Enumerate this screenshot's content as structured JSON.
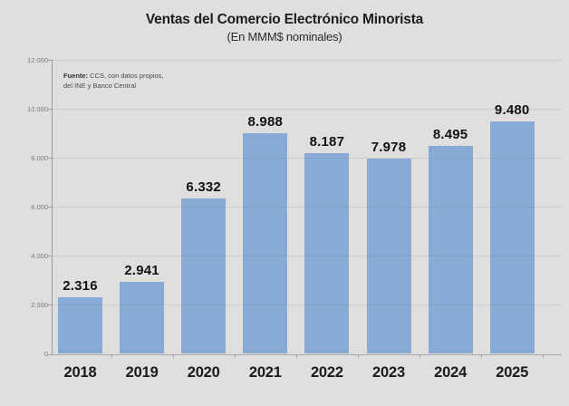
{
  "page": {
    "background_color": "#e0dfdd"
  },
  "header": {
    "title": "Ventas del Comercio Electrónico Minorista",
    "subtitle": "(En MMM$ nominales)"
  },
  "source_note": {
    "prefix": "Fuente:",
    "line1_rest": " CCS, con datos propios,",
    "line2": "del INE y Banco Central"
  },
  "chart_data": {
    "type": "bar",
    "title": "Ventas del Comercio Electrónico Minorista",
    "subtitle": "(En MMM$ nominales)",
    "unit": "MMM$ nominales",
    "categories": [
      "2018",
      "2019",
      "2020",
      "2021",
      "2022",
      "2023",
      "2024",
      "2025"
    ],
    "values": [
      2316,
      2941,
      6332,
      8988,
      8187,
      7978,
      8495,
      9480
    ],
    "value_labels": [
      "2.316",
      "2.941",
      "6.332",
      "8.988",
      "8.187",
      "7.978",
      "8.495",
      "9.480"
    ],
    "ylim": [
      0,
      12000
    ],
    "y_ticks": [
      {
        "value": 0,
        "label": "0"
      },
      {
        "value": 2000,
        "label": "2.000"
      },
      {
        "value": 4000,
        "label": "4.000"
      },
      {
        "value": 6000,
        "label": "6.000"
      },
      {
        "value": 8000,
        "label": "8.000"
      },
      {
        "value": 10000,
        "label": "10.000"
      },
      {
        "value": 12000,
        "label": "12.000"
      }
    ],
    "grid": "horizontal",
    "legend": "none",
    "bar_color": "#87abd4",
    "value_label_color": "#121212",
    "axis_color": "#9e9e9e",
    "tick_label_color": "#7c7c7c",
    "gridline_color": "rgba(120,120,120,0.16)"
  }
}
